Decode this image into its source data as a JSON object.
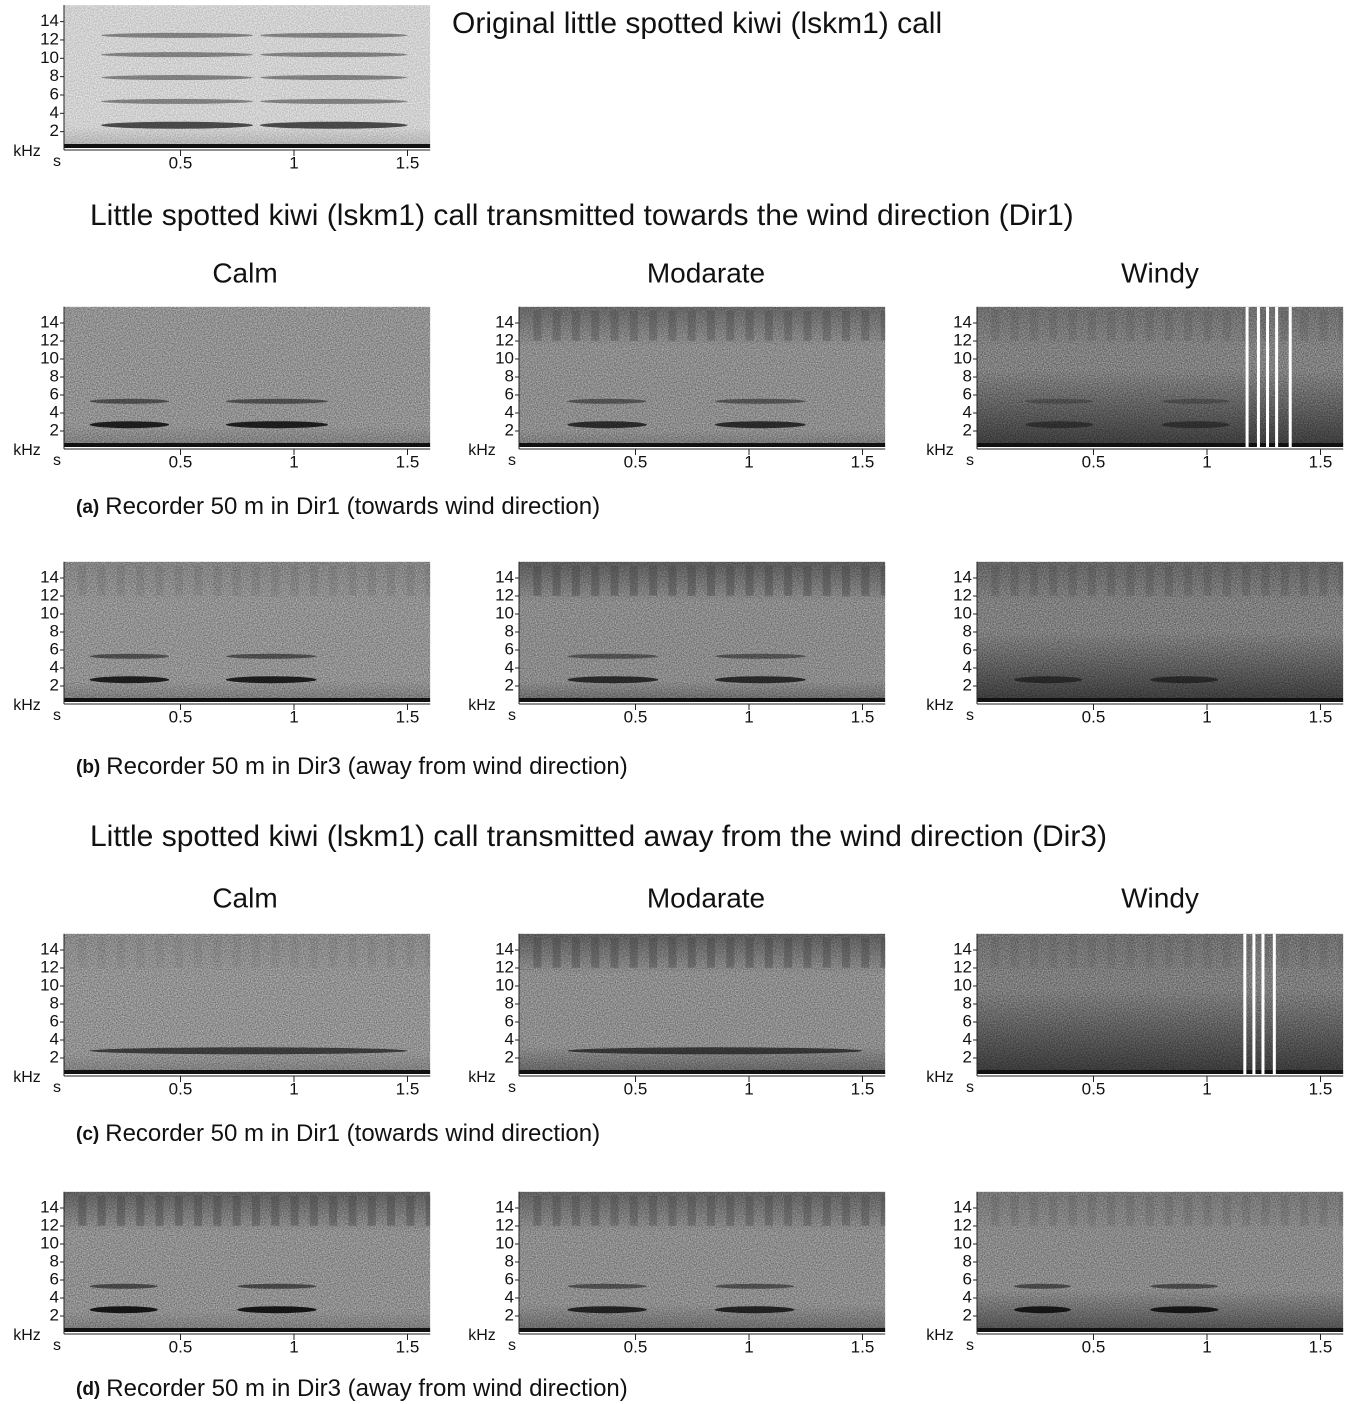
{
  "figure": {
    "axes": {
      "y_unit": "kHz",
      "x_unit": "s",
      "ylim": [
        0,
        15.8
      ],
      "xlim": [
        0,
        1.6
      ],
      "yticks": [
        2,
        4,
        6,
        8,
        10,
        12,
        14
      ],
      "xticks": [
        0.5,
        1,
        1.5
      ]
    },
    "original": {
      "title": "Original little spotted kiwi (lskm1) call"
    },
    "sections": [
      {
        "title": "Little spotted kiwi (lskm1) call transmitted towards the wind direction (Dir1)",
        "columns": [
          "Calm",
          "Modarate",
          "Windy"
        ],
        "rows": [
          {
            "label": "(a)",
            "caption": "Recorder 50 m in Dir1 (towards wind direction)"
          },
          {
            "label": "(b)",
            "caption": "Recorder 50 m in Dir3 (away from wind direction)"
          }
        ]
      },
      {
        "title": "Little spotted kiwi (lskm1) call transmitted away from the wind direction (Dir3)",
        "columns": [
          "Calm",
          "Modarate",
          "Windy"
        ],
        "rows": [
          {
            "label": "(c)",
            "caption": "Recorder 50 m in Dir1 (towards wind direction)"
          },
          {
            "label": "(d)",
            "caption": "Recorder 50 m in Dir3 (away from wind direction)"
          }
        ]
      }
    ]
  }
}
